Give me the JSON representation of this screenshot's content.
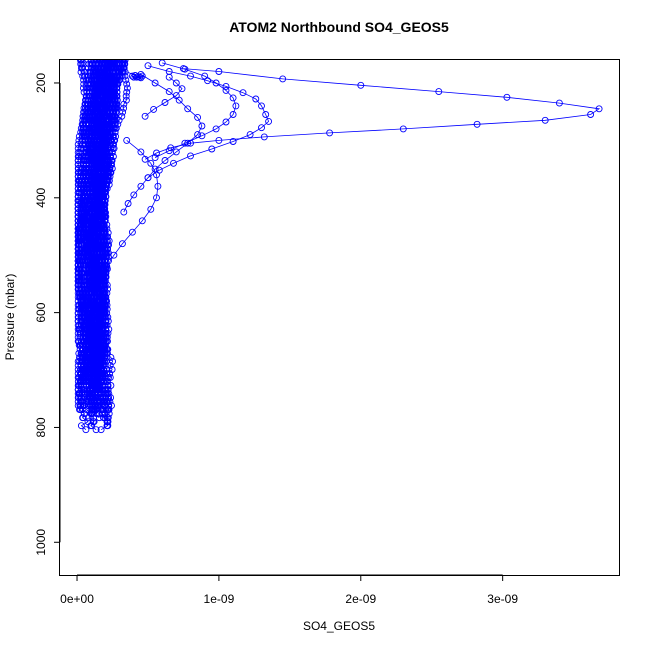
{
  "chart_data": {
    "type": "scatter",
    "title": "ATOM2 Northbound SO4_GEOS5",
    "xlabel": "SO4_GEOS5",
    "ylabel": "Pressure (mbar)",
    "xlim": [
      -1.2e-10,
      3.82e-09
    ],
    "ylim": [
      1057,
      160
    ],
    "y_reversed": true,
    "x_ticks": [
      {
        "value": 0,
        "label": "0e+00"
      },
      {
        "value": 1e-09,
        "label": "1e-09"
      },
      {
        "value": 2e-09,
        "label": "2e-09"
      },
      {
        "value": 3e-09,
        "label": "3e-09"
      }
    ],
    "y_ticks": [
      {
        "value": 200,
        "label": "200"
      },
      {
        "value": 400,
        "label": "400"
      },
      {
        "value": 600,
        "label": "600"
      },
      {
        "value": 800,
        "label": "800"
      },
      {
        "value": 1000,
        "label": "1000"
      }
    ],
    "marker_color": "#0000ff",
    "grid": false,
    "legend": "none",
    "series": [
      {
        "points": [
          [
            7.5e-10,
            175
          ],
          [
            1e-09,
            180
          ],
          [
            1.45e-09,
            193
          ],
          [
            2e-09,
            204
          ],
          [
            2.55e-09,
            215
          ],
          [
            3.03e-09,
            225
          ],
          [
            3.4e-09,
            235
          ],
          [
            3.68e-09,
            245
          ],
          [
            3.62e-09,
            255
          ],
          [
            3.3e-09,
            265
          ],
          [
            2.82e-09,
            272
          ],
          [
            2.3e-09,
            280
          ],
          [
            1.78e-09,
            287
          ],
          [
            1.32e-09,
            294
          ],
          [
            1e-09,
            300
          ],
          [
            8e-10,
            305
          ],
          [
            6.6e-10,
            313
          ],
          [
            5.6e-10,
            322
          ],
          [
            4.8e-10,
            333
          ]
        ]
      },
      {
        "points": [
          [
            5e-10,
            170
          ],
          [
            6.5e-10,
            180
          ],
          [
            8e-10,
            188
          ],
          [
            9.2e-10,
            196
          ],
          [
            1.05e-09,
            206
          ],
          [
            1.17e-09,
            217
          ],
          [
            1.26e-09,
            228
          ],
          [
            1.3e-09,
            240
          ],
          [
            1.33e-09,
            255
          ],
          [
            1.35e-09,
            267
          ],
          [
            1.3e-09,
            278
          ],
          [
            1.22e-09,
            290
          ],
          [
            1.1e-09,
            302
          ],
          [
            9.5e-10,
            315
          ],
          [
            8e-10,
            327
          ],
          [
            6.8e-10,
            340
          ],
          [
            5.8e-10,
            352
          ],
          [
            5e-10,
            365
          ]
        ]
      },
      {
        "points": [
          [
            6e-10,
            165
          ],
          [
            7.6e-10,
            176
          ],
          [
            9e-10,
            188
          ],
          [
            9.8e-10,
            200
          ],
          [
            1.05e-09,
            213
          ],
          [
            1.1e-09,
            226
          ],
          [
            1.12e-09,
            240
          ],
          [
            1.1e-09,
            255
          ],
          [
            1.05e-09,
            268
          ],
          [
            9.8e-10,
            280
          ],
          [
            8.8e-10,
            292
          ],
          [
            7.6e-10,
            305
          ],
          [
            6.5e-10,
            318
          ],
          [
            5.5e-10,
            330
          ]
        ]
      },
      {
        "points": [
          [
            4.5e-10,
            185
          ],
          [
            5.5e-10,
            200
          ],
          [
            6.5e-10,
            215
          ],
          [
            7.2e-10,
            230
          ],
          [
            7.8e-10,
            245
          ],
          [
            8.5e-10,
            260
          ],
          [
            8.8e-10,
            275
          ],
          [
            8.5e-10,
            290
          ],
          [
            7.8e-10,
            305
          ],
          [
            7e-10,
            320
          ],
          [
            6.2e-10,
            335
          ],
          [
            5.5e-10,
            350
          ],
          [
            5e-10,
            365
          ],
          [
            4.5e-10,
            380
          ],
          [
            4e-10,
            395
          ],
          [
            3.6e-10,
            410
          ],
          [
            3.3e-10,
            425
          ]
        ]
      },
      {
        "points": [
          [
            3.5e-10,
            300
          ],
          [
            4.5e-10,
            320
          ],
          [
            5.2e-10,
            340
          ],
          [
            5.6e-10,
            360
          ],
          [
            5.7e-10,
            380
          ],
          [
            5.6e-10,
            400
          ],
          [
            5.2e-10,
            420
          ],
          [
            4.6e-10,
            440
          ],
          [
            3.9e-10,
            460
          ],
          [
            3.2e-10,
            480
          ],
          [
            2.6e-10,
            500
          ],
          [
            2.1e-10,
            520
          ],
          [
            1.8e-10,
            540
          ]
        ]
      },
      {
        "points": [
          [
            6.5e-10,
            190
          ],
          [
            7e-10,
            200
          ],
          [
            7.4e-10,
            210
          ],
          [
            7e-10,
            222
          ],
          [
            6.2e-10,
            234
          ],
          [
            5.4e-10,
            246
          ],
          [
            4.8e-10,
            258
          ]
        ]
      },
      {
        "points": [
          [
            2e-10,
            165
          ],
          [
            4.4e-10,
            190
          ],
          [
            4.6e-10,
            188
          ],
          [
            4.2e-10,
            190
          ],
          [
            3.9e-10,
            188
          ],
          [
            4e-10,
            190
          ],
          [
            4.5e-10,
            191
          ],
          [
            4.1e-10,
            187
          ],
          [
            4.3e-10,
            189
          ]
        ]
      }
    ],
    "bulk": {
      "p_start": 160,
      "p_end": 815,
      "step": 7,
      "profiles": 46,
      "seed": 7
    }
  }
}
